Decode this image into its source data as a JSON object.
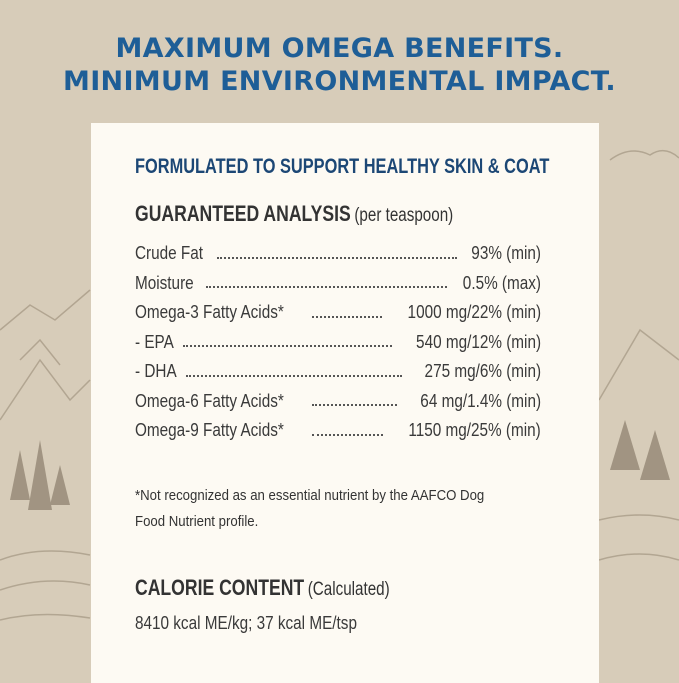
{
  "headline": {
    "line1": "MAXIMUM OMEGA BENEFITS.",
    "line2": "MINIMUM ENVIRONMENTAL IMPACT."
  },
  "card": {
    "subtitle": "FORMULATED TO SUPPORT HEALTHY SKIN & COAT",
    "analysis": {
      "title": "GUARANTEED ANALYSIS",
      "qualifier": "(per teaspoon)",
      "rows": [
        {
          "label": "Crude Fat",
          "value": "93% (min)"
        },
        {
          "label": "Moisture",
          "value": "0.5% (max)"
        },
        {
          "label": "Omega-3 Fatty Acids*",
          "value": "1000 mg/22% (min)"
        },
        {
          "label": "- EPA",
          "value": "540 mg/12% (min)"
        },
        {
          "label": "- DHA",
          "value": "275 mg/6% (min)"
        },
        {
          "label": "Omega-6 Fatty Acids*",
          "value": "64 mg/1.4% (min)"
        },
        {
          "label": "Omega-9 Fatty Acids*",
          "value": "1150 mg/25% (min)"
        }
      ],
      "footnote": "*Not recognized as an essential nutrient by the AAFCO Dog Food Nutrient profile."
    },
    "calorie": {
      "title": "CALORIE CONTENT",
      "qualifier": "(Calculated)",
      "value": "8410 kcal ME/kg; 37 kcal ME/tsp"
    }
  },
  "colors": {
    "background": "#d7ccb9",
    "headline": "#1e5e97",
    "subtitle": "#1c4775",
    "card": "#fdfaf3"
  }
}
